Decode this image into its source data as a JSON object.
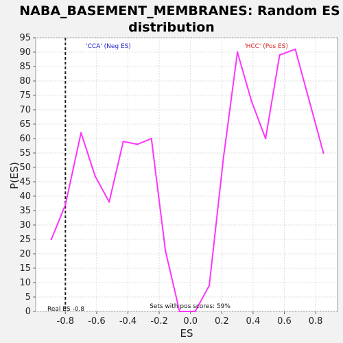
{
  "chart_data": {
    "type": "line",
    "title_line1": "NABA_BASEMENT_MEMBRANES: Random ES",
    "title_line2": "distribution",
    "xlabel": "ES",
    "ylabel": "P(ES)",
    "xlim": [
      -0.99,
      0.94
    ],
    "ylim": [
      0,
      95
    ],
    "x_ticks": [
      "-0.8",
      "-0.6",
      "-0.4",
      "-0.2",
      "0.0",
      "0.2",
      "0.4",
      "0.6",
      "0.8"
    ],
    "x_tick_values": [
      -0.8,
      -0.6,
      -0.4,
      -0.2,
      0.0,
      0.2,
      0.4,
      0.6,
      0.8
    ],
    "y_ticks": [
      0,
      5,
      10,
      15,
      20,
      25,
      30,
      35,
      40,
      45,
      50,
      55,
      60,
      65,
      70,
      75,
      80,
      85,
      90,
      95
    ],
    "grid": true,
    "series": [
      {
        "color": "#ff33ff",
        "x": [
          -0.89,
          -0.8,
          -0.7,
          -0.61,
          -0.52,
          -0.43,
          -0.34,
          -0.25,
          -0.16,
          -0.07,
          0.03,
          0.12,
          0.21,
          0.3,
          0.39,
          0.48,
          0.57,
          0.67,
          0.76,
          0.85
        ],
        "y": [
          25,
          37,
          62,
          47,
          38,
          59,
          58,
          60,
          21,
          0,
          0,
          9,
          53,
          90,
          73,
          60,
          89,
          91,
          73,
          55
        ]
      }
    ],
    "real_es": -0.8,
    "annotations": {
      "neg_label": "'CCA' (Neg ES)",
      "neg_color": "#2222cc",
      "pos_label": "'HCC' (Pos ES)",
      "pos_color": "#dd2222",
      "real_es_label": "Real ES -0.8",
      "pos_scores_label": "Sets with pos scores: 59%"
    }
  }
}
